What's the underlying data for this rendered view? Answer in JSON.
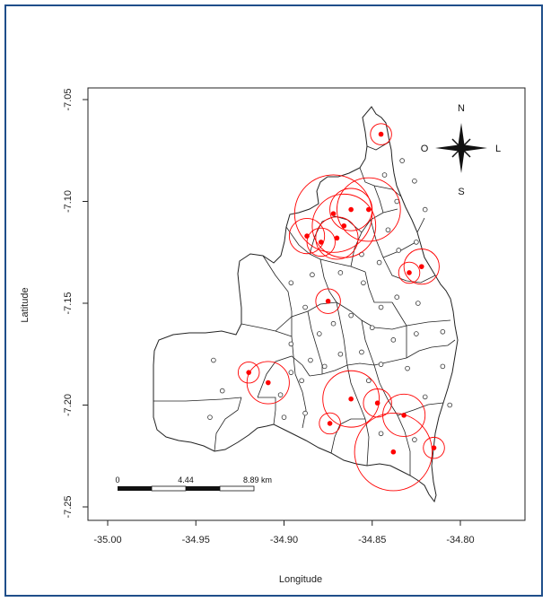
{
  "map": {
    "x_axis": {
      "title": "Longitude",
      "ticks": [
        {
          "value": -35.0,
          "label": "-35.00"
        },
        {
          "value": -34.95,
          "label": "-34.95"
        },
        {
          "value": -34.9,
          "label": "-34.90"
        },
        {
          "value": -34.85,
          "label": "-34.85"
        },
        {
          "value": -34.8,
          "label": "-34.80"
        }
      ]
    },
    "y_axis": {
      "title": "Latitude",
      "ticks": [
        {
          "value": -7.05,
          "label": "-7.05"
        },
        {
          "value": -7.1,
          "label": "-7.10"
        },
        {
          "value": -7.15,
          "label": "-7.15"
        },
        {
          "value": -7.2,
          "label": "-7.20"
        },
        {
          "value": -7.25,
          "label": "-7.25"
        }
      ]
    },
    "compass": {
      "north": "N",
      "south": "S",
      "west": "O",
      "east": "L"
    },
    "scale_bar": {
      "labels": [
        "0",
        "4.44",
        "8.89 km"
      ]
    },
    "colors": {
      "highlight": "#ff0000",
      "boundary": "#222222",
      "frame": "#1f4e8a"
    },
    "highlighted_points": [
      {
        "lon": -34.845,
        "lat": -7.067,
        "radius_deg": 0.006
      },
      {
        "lon": -34.872,
        "lat": -7.106,
        "radius_deg": 0.022
      },
      {
        "lon": -34.866,
        "lat": -7.112,
        "radius_deg": 0.018
      },
      {
        "lon": -34.87,
        "lat": -7.118,
        "radius_deg": 0.012
      },
      {
        "lon": -34.879,
        "lat": -7.12,
        "radius_deg": 0.008
      },
      {
        "lon": -34.887,
        "lat": -7.117,
        "radius_deg": 0.01
      },
      {
        "lon": -34.862,
        "lat": -7.104,
        "radius_deg": 0.012
      },
      {
        "lon": -34.852,
        "lat": -7.104,
        "radius_deg": 0.018
      },
      {
        "lon": -34.829,
        "lat": -7.135,
        "radius_deg": 0.006
      },
      {
        "lon": -34.822,
        "lat": -7.132,
        "radius_deg": 0.01
      },
      {
        "lon": -34.875,
        "lat": -7.149,
        "radius_deg": 0.007
      },
      {
        "lon": -34.92,
        "lat": -7.184,
        "radius_deg": 0.006
      },
      {
        "lon": -34.909,
        "lat": -7.189,
        "radius_deg": 0.012
      },
      {
        "lon": -34.862,
        "lat": -7.197,
        "radius_deg": 0.016
      },
      {
        "lon": -34.847,
        "lat": -7.199,
        "radius_deg": 0.008
      },
      {
        "lon": -34.874,
        "lat": -7.209,
        "radius_deg": 0.006
      },
      {
        "lon": -34.832,
        "lat": -7.205,
        "radius_deg": 0.012
      },
      {
        "lon": -34.838,
        "lat": -7.223,
        "radius_deg": 0.022
      },
      {
        "lon": -34.815,
        "lat": -7.221,
        "radius_deg": 0.006
      }
    ],
    "plain_points": [
      {
        "lon": -34.843,
        "lat": -7.087
      },
      {
        "lon": -34.833,
        "lat": -7.08
      },
      {
        "lon": -34.826,
        "lat": -7.09
      },
      {
        "lon": -34.836,
        "lat": -7.1
      },
      {
        "lon": -34.82,
        "lat": -7.104
      },
      {
        "lon": -34.841,
        "lat": -7.114
      },
      {
        "lon": -34.856,
        "lat": -7.126
      },
      {
        "lon": -34.846,
        "lat": -7.13
      },
      {
        "lon": -34.835,
        "lat": -7.124
      },
      {
        "lon": -34.825,
        "lat": -7.12
      },
      {
        "lon": -34.884,
        "lat": -7.136
      },
      {
        "lon": -34.896,
        "lat": -7.14
      },
      {
        "lon": -34.868,
        "lat": -7.135
      },
      {
        "lon": -34.855,
        "lat": -7.14
      },
      {
        "lon": -34.845,
        "lat": -7.152
      },
      {
        "lon": -34.836,
        "lat": -7.147
      },
      {
        "lon": -34.824,
        "lat": -7.15
      },
      {
        "lon": -34.888,
        "lat": -7.152
      },
      {
        "lon": -34.88,
        "lat": -7.165
      },
      {
        "lon": -34.872,
        "lat": -7.16
      },
      {
        "lon": -34.862,
        "lat": -7.156
      },
      {
        "lon": -34.85,
        "lat": -7.162
      },
      {
        "lon": -34.838,
        "lat": -7.168
      },
      {
        "lon": -34.825,
        "lat": -7.165
      },
      {
        "lon": -34.81,
        "lat": -7.164
      },
      {
        "lon": -34.896,
        "lat": -7.17
      },
      {
        "lon": -34.885,
        "lat": -7.178
      },
      {
        "lon": -34.877,
        "lat": -7.181
      },
      {
        "lon": -34.868,
        "lat": -7.175
      },
      {
        "lon": -34.856,
        "lat": -7.174
      },
      {
        "lon": -34.845,
        "lat": -7.18
      },
      {
        "lon": -34.83,
        "lat": -7.182
      },
      {
        "lon": -34.81,
        "lat": -7.181
      },
      {
        "lon": -34.94,
        "lat": -7.178
      },
      {
        "lon": -34.935,
        "lat": -7.193
      },
      {
        "lon": -34.902,
        "lat": -7.195
      },
      {
        "lon": -34.89,
        "lat": -7.188
      },
      {
        "lon": -34.852,
        "lat": -7.188
      },
      {
        "lon": -34.82,
        "lat": -7.196
      },
      {
        "lon": -34.806,
        "lat": -7.2
      },
      {
        "lon": -34.942,
        "lat": -7.206
      },
      {
        "lon": -34.9,
        "lat": -7.206
      },
      {
        "lon": -34.888,
        "lat": -7.204
      },
      {
        "lon": -34.845,
        "lat": -7.214
      },
      {
        "lon": -34.826,
        "lat": -7.217
      },
      {
        "lon": -34.896,
        "lat": -7.184
      }
    ]
  }
}
